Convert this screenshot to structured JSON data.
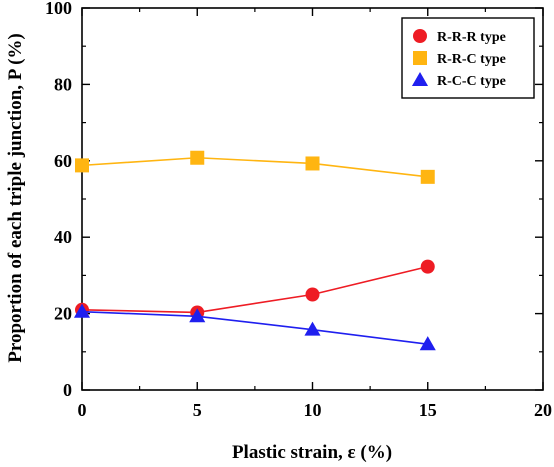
{
  "chart_data": {
    "type": "line",
    "xlabel": "Plastic strain, ε (%)",
    "ylabel": "Proportion of each triple junction, P (%)",
    "xlim": [
      0,
      20
    ],
    "ylim": [
      0,
      100
    ],
    "xticks": [
      "0",
      "5",
      "10",
      "15",
      "20"
    ],
    "yticks": [
      "0",
      "20",
      "40",
      "60",
      "80",
      "100"
    ],
    "legend_position": "top-right",
    "grid": false,
    "x": [
      0,
      5,
      10,
      15
    ],
    "series": [
      {
        "name": "R-R-R type",
        "marker": "circle",
        "color": "#ee1c24",
        "values": [
          21.0,
          20.3,
          25.0,
          32.3
        ]
      },
      {
        "name": "R-R-C type",
        "marker": "square",
        "color": "#ffb511",
        "values": [
          58.8,
          60.8,
          59.3,
          55.8
        ]
      },
      {
        "name": "R-C-C type",
        "marker": "triangle",
        "color": "#1f1fef",
        "values": [
          20.5,
          19.3,
          15.8,
          12.0
        ]
      }
    ]
  }
}
